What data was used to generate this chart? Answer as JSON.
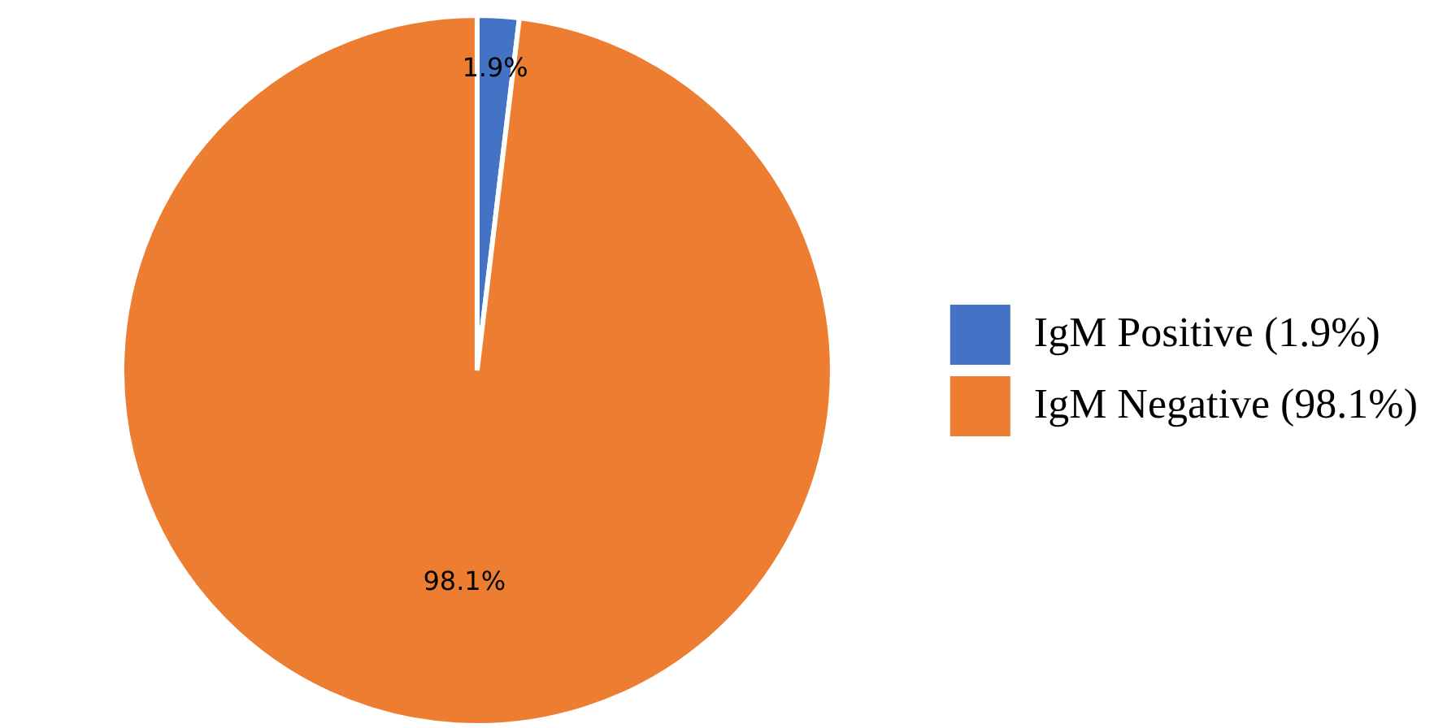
{
  "chart_data": {
    "type": "pie",
    "categories": [
      "IgM Positive (1.9%)",
      "IgM Negative (98.1%)"
    ],
    "values": [
      1.9,
      98.1
    ],
    "colors": [
      "#4472c4",
      "#ed7d31"
    ],
    "value_labels": [
      "1.9%",
      "98.1%"
    ],
    "legend": "right"
  }
}
